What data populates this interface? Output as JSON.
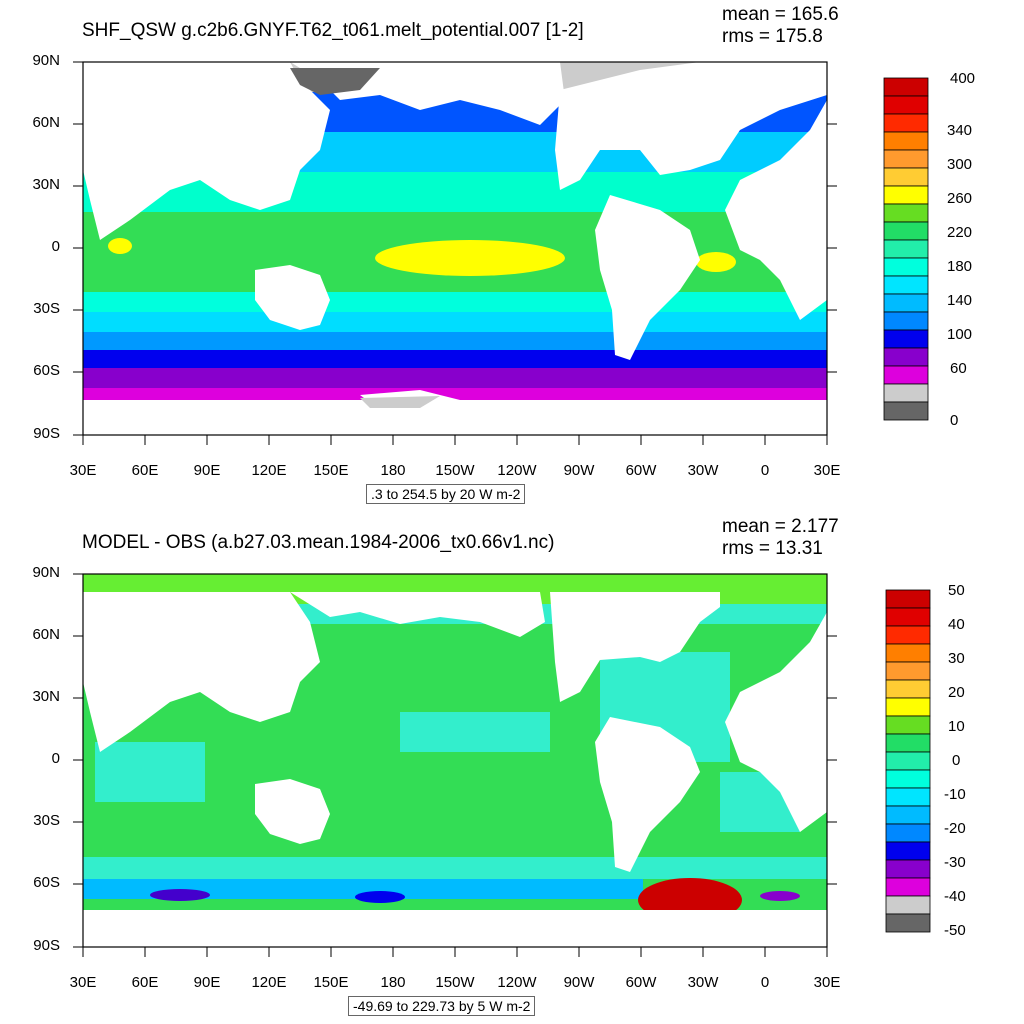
{
  "panels": [
    {
      "title": "SHF_QSW g.c2b6.GNYF.T62_t061.melt_potential.007 [1-2]",
      "mean": "mean = 165.6",
      "rms": "rms = 175.8",
      "range": ".3 to 254.5 by 20 W m-2",
      "colorbar_labels": [
        "400",
        "340",
        "300",
        "260",
        "220",
        "180",
        "140",
        "100",
        "60",
        "0"
      ],
      "colorbar_colors": [
        "#cc0000",
        "#e00000",
        "#ff2a00",
        "#ff7f00",
        "#ff9a2e",
        "#ffcc33",
        "#ffff00",
        "#66dd22",
        "#22dd66",
        "#22eeaa",
        "#00ffdd",
        "#00e5ff",
        "#00bbff",
        "#0088ff",
        "#0000ee",
        "#8800cc",
        "#dd00dd",
        "#cccccc",
        "#666666"
      ]
    },
    {
      "title": "MODEL - OBS (a.b27.03.mean.1984-2006_tx0.66v1.nc)",
      "mean": "mean = 2.177",
      "rms": "rms = 13.31",
      "range": "-49.69 to 229.73 by 5 W m-2",
      "colorbar_labels": [
        "50",
        "40",
        "30",
        "20",
        "10",
        "0",
        "-10",
        "-20",
        "-30",
        "-40",
        "-50"
      ],
      "colorbar_colors": [
        "#cc0000",
        "#e00000",
        "#ff2a00",
        "#ff7f00",
        "#ff9a2e",
        "#ffcc33",
        "#ffff00",
        "#66dd22",
        "#22dd66",
        "#22eeaa",
        "#00ffdd",
        "#00e5ff",
        "#00bbff",
        "#0088ff",
        "#0000ee",
        "#8800cc",
        "#dd00dd",
        "#cccccc",
        "#666666"
      ]
    }
  ],
  "y_labels": [
    "90N",
    "60N",
    "30N",
    "0",
    "30S",
    "60S",
    "90S"
  ],
  "x_labels": [
    "30E",
    "60E",
    "90E",
    "120E",
    "150E",
    "180",
    "150W",
    "120W",
    "90W",
    "60W",
    "30W",
    "0",
    "30E"
  ]
}
